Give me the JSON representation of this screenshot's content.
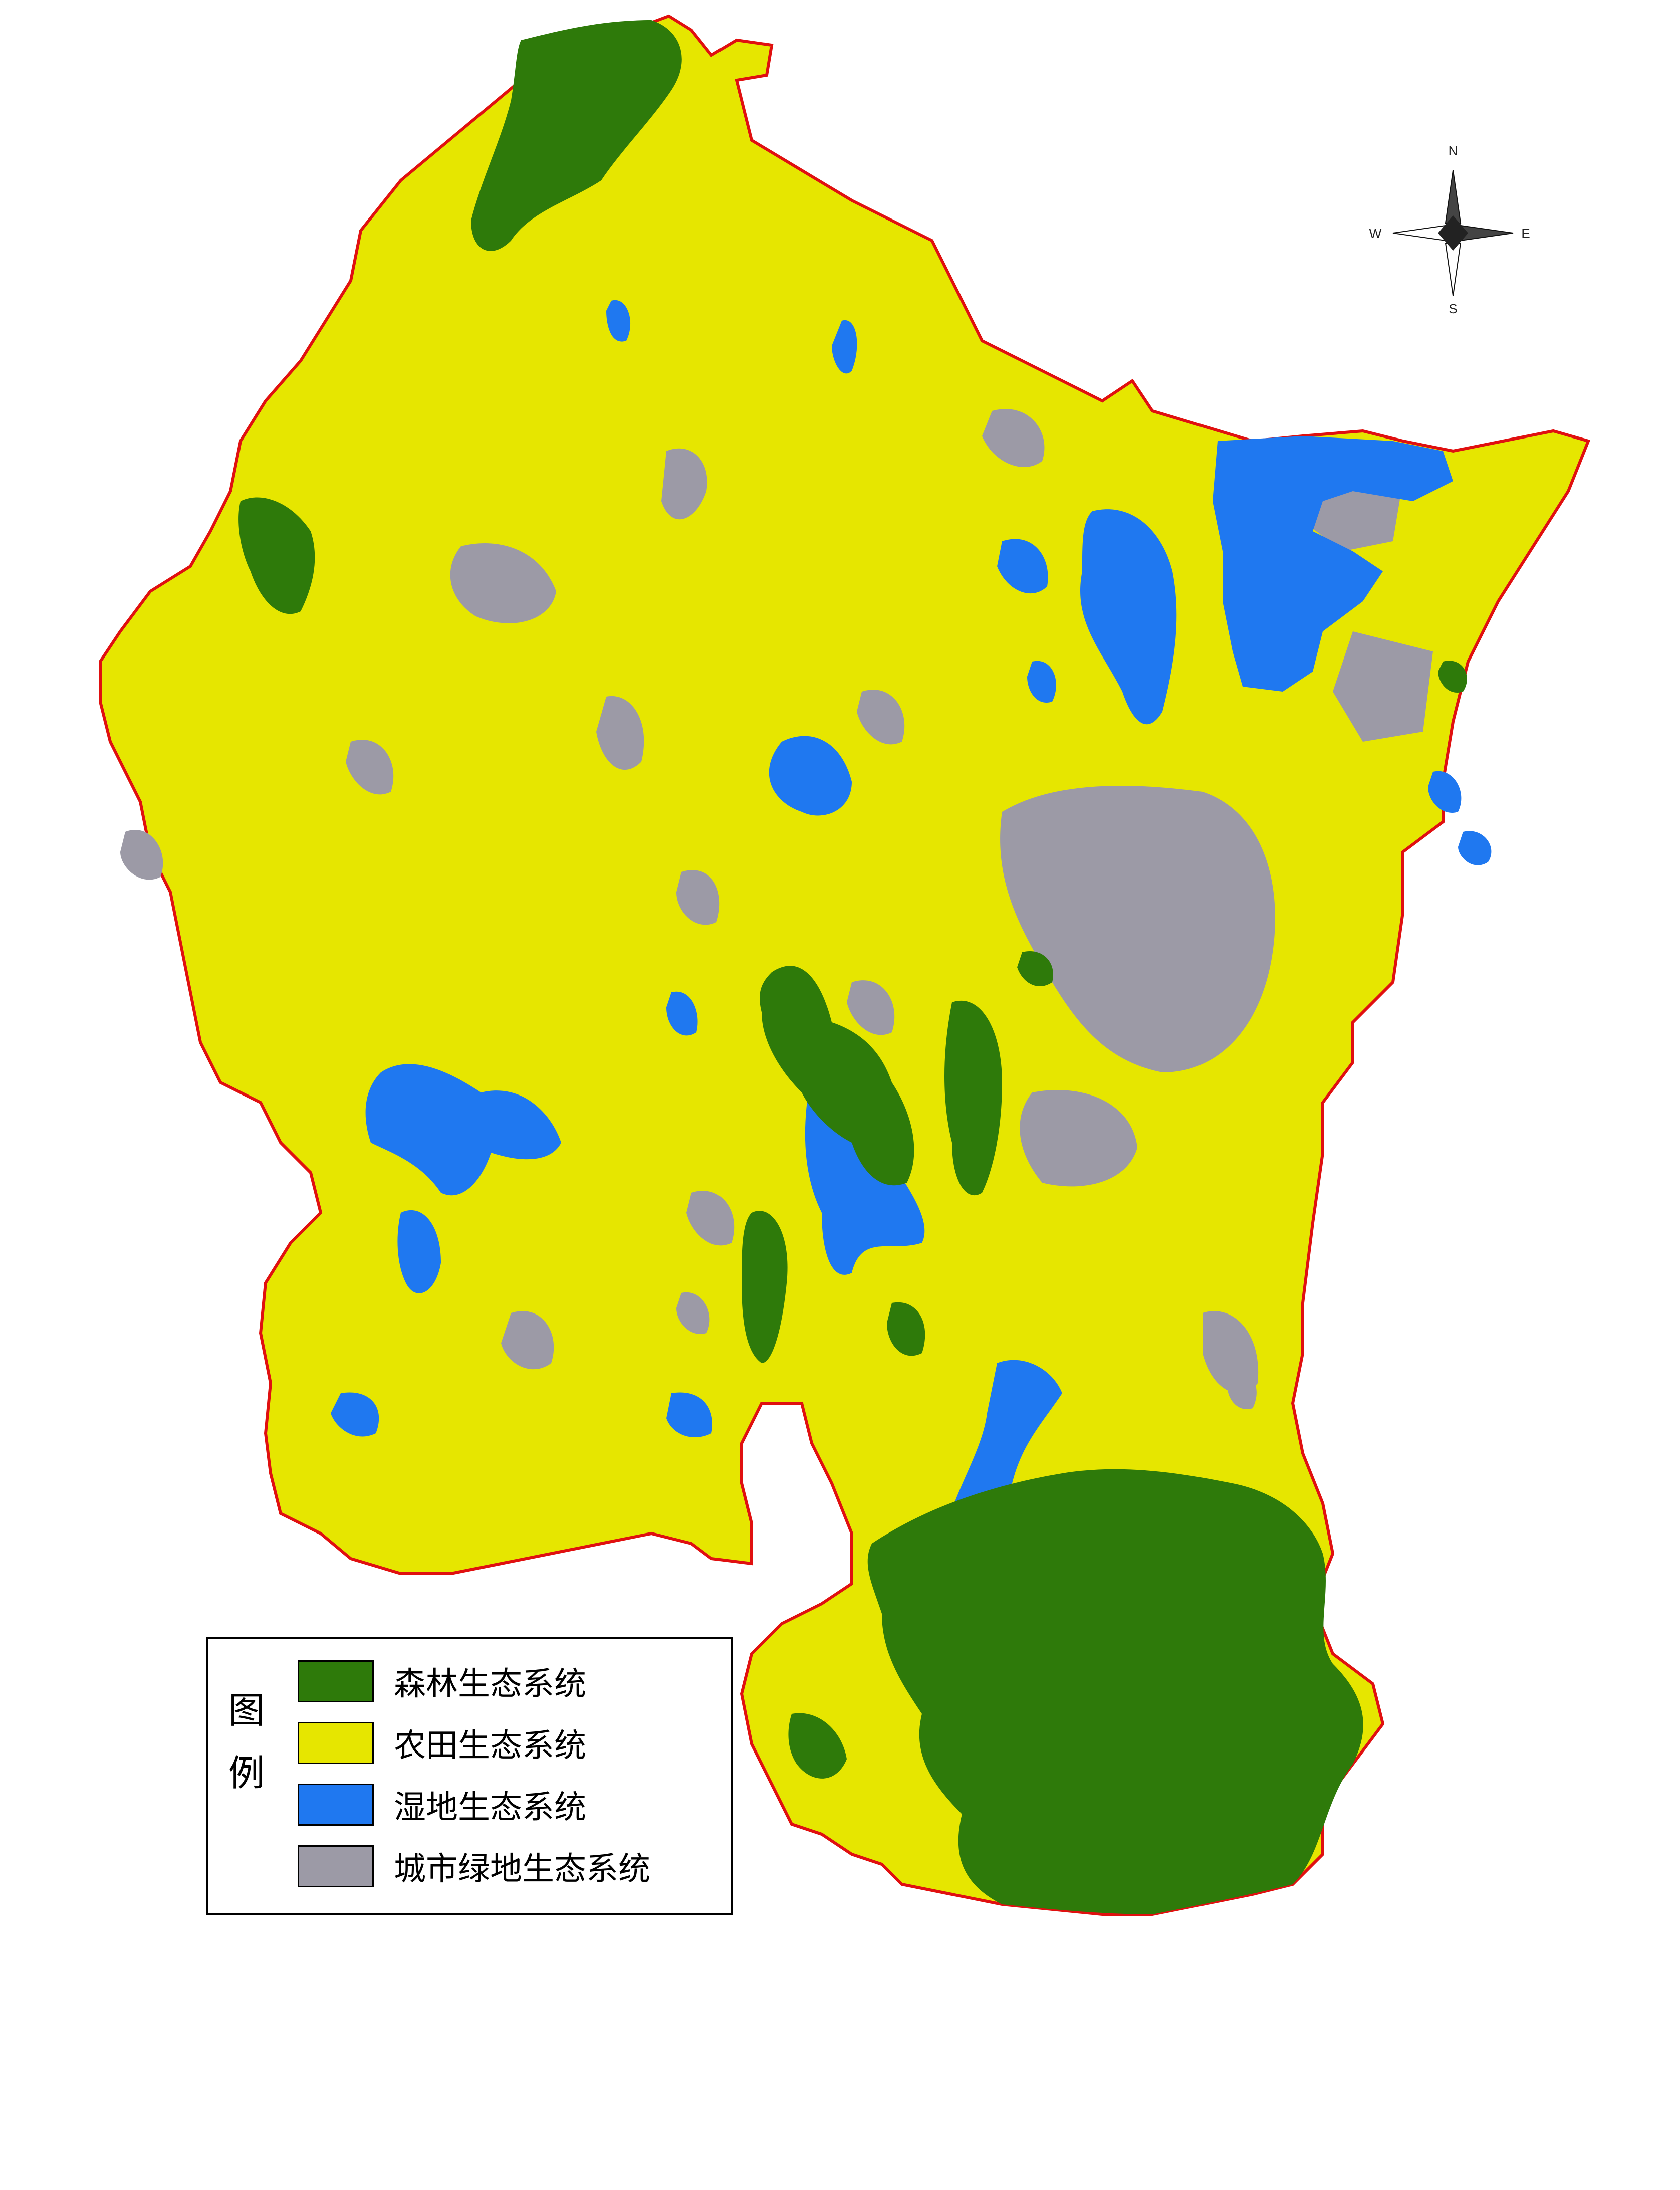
{
  "legend": {
    "title": "图例",
    "items": [
      {
        "label": "森林生态系统",
        "color": "#2e7a0a"
      },
      {
        "label": "农田生态系统",
        "color": "#e6e600"
      },
      {
        "label": "湿地生态系统",
        "color": "#1f78f0"
      },
      {
        "label": "城市绿地生态系统",
        "color": "#9c9aa6"
      }
    ]
  },
  "compass": {
    "north": "N",
    "south": "S",
    "east": "E",
    "west": "W"
  },
  "colors": {
    "boundary": "#e01010",
    "background": "#ffffff"
  }
}
